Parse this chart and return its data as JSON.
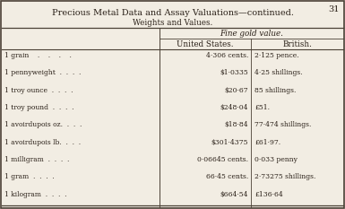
{
  "page_number": "31",
  "title": "Precious Metal Data and Assay Valuations—continued.",
  "subtitle": "Weights and Values.",
  "col_header_span": "Fine gold value.",
  "col1_header": "United States.",
  "col2_header": "British.",
  "rows": [
    [
      "1 grain    .    .    .    .",
      "4·306 cents.",
      "2·125 pence."
    ],
    [
      "1 pennyweight  .  .  .  .",
      "$1·0335",
      "4·25 shillings."
    ],
    [
      "1 troy ounce  .  .  .  .",
      "$20·67",
      "85 shillings."
    ],
    [
      "1 troy pound  .  .  .  .",
      "$248·04",
      "£51."
    ],
    [
      "1 avoirdupois oz.  .  .  .",
      "$18·84",
      "77·474 shillings."
    ],
    [
      "1 avoirdupois lb.  .  .  .",
      "$301·4375",
      "£61·97."
    ],
    [
      "1 milligram  .  .  .  .",
      "0·06645 cents.",
      "0·033 penny"
    ],
    [
      "1 gram  .  .  .  .",
      "66·45 cents.",
      "2·73275 shillings."
    ],
    [
      "1 kilogram  .  .  .  .",
      "$664·54",
      "£136·64"
    ]
  ],
  "bg_color": "#f2ede3",
  "border_color": "#4a4035",
  "title_color": "#2a2018",
  "text_color": "#2a2018",
  "figw": 3.85,
  "figh": 2.33,
  "dpi": 100
}
